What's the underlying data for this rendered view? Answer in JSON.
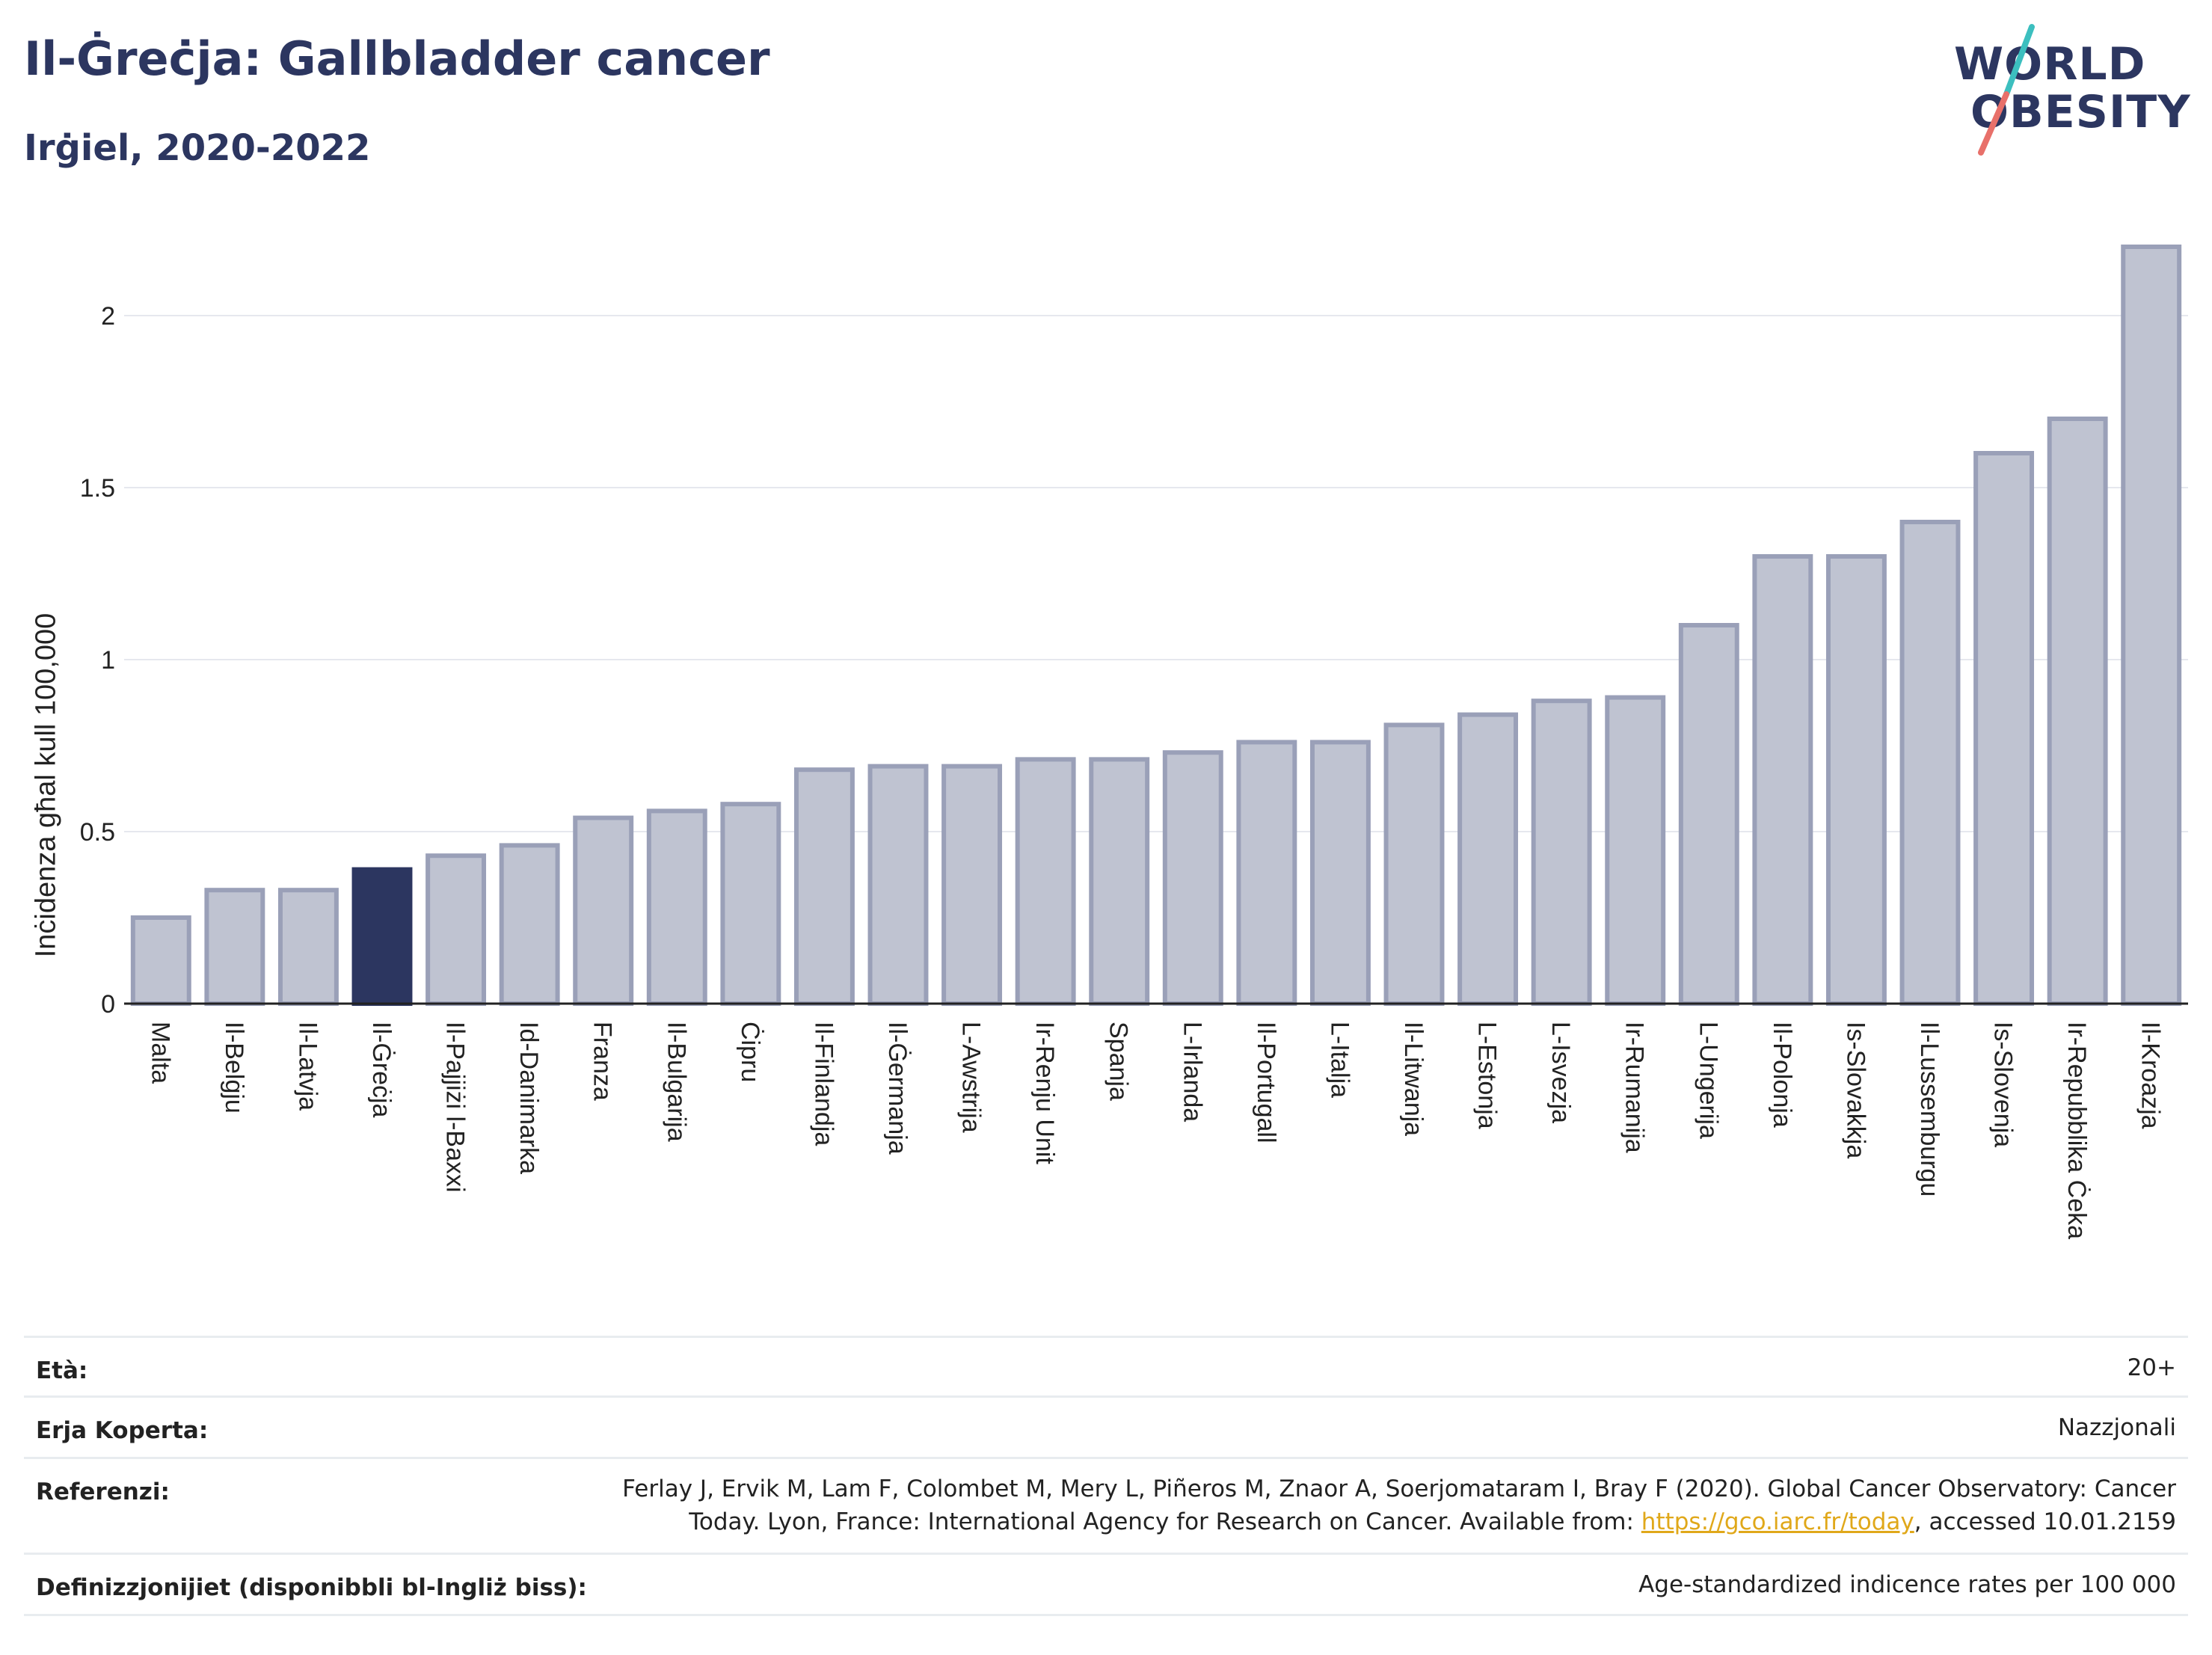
{
  "header": {
    "title": "Il-Ġreċja: Gallbladder cancer",
    "subtitle": "Irġiel, 2020-2022"
  },
  "logo": {
    "line1": "WORLD",
    "line2": "OBESITY",
    "colors": {
      "text": "#2c3660",
      "slash_teal": "#3cbfbf",
      "slash_coral": "#e8706a"
    }
  },
  "colors": {
    "bar_default_fill": "#bfc3d1",
    "bar_default_stroke": "#9aa0b8",
    "bar_highlight": "#2c3660",
    "grid": "#e6e8ee",
    "axis": "#222222"
  },
  "chart_data": {
    "type": "bar",
    "ylabel": "Inċidenza għal kull 100,000",
    "ylim": [
      0,
      2.25
    ],
    "yticks": [
      {
        "value": 0,
        "label": "0"
      },
      {
        "value": 0.5,
        "label": "0.5"
      },
      {
        "value": 1,
        "label": "1"
      },
      {
        "value": 1.5,
        "label": "1.5"
      },
      {
        "value": 2,
        "label": "2"
      }
    ],
    "grid": true,
    "highlight": "Il-Ġreċja",
    "categories": [
      "Malta",
      "Il-Belġju",
      "Il-Latvja",
      "Il-Ġreċja",
      "Il-Pajjiżi l-Baxxi",
      "Id-Danimarka",
      "Franza",
      "Il-Bulgarija",
      "Ċipru",
      "Il-Finlandja",
      "Il-Ġermanja",
      "L-Awstrija",
      "Ir-Renju Unit",
      "Spanja",
      "L-Irlanda",
      "Il-Portugall",
      "L-Italja",
      "Il-Litwanja",
      "L-Estonja",
      "L-Isvezja",
      "Ir-Rumanija",
      "L-Ungerija",
      "Il-Polonja",
      "Is-Slovakkja",
      "Il-Lussemburgu",
      "Is-Slovenja",
      "Ir-Repubblika Ċeka",
      "Il-Kroazja"
    ],
    "values": [
      0.25,
      0.33,
      0.33,
      0.39,
      0.43,
      0.46,
      0.54,
      0.56,
      0.58,
      0.68,
      0.69,
      0.69,
      0.71,
      0.71,
      0.73,
      0.76,
      0.76,
      0.81,
      0.84,
      0.88,
      0.89,
      1.1,
      1.3,
      1.3,
      1.4,
      1.6,
      1.7,
      2.2
    ]
  },
  "info": {
    "age_label": "Età:",
    "age_value": "20+",
    "area_label": "Erja Koperta:",
    "area_value": "Nazzjonali",
    "ref_label": "Referenzi:",
    "ref_line1": "Ferlay J, Ervik M, Lam F, Colombet M, Mery L, Piñeros M, Znaor A, Soerjomataram I, Bray F (2020). Global Cancer Observatory: Cancer",
    "ref_line2_pre": "Today. Lyon, France: International Agency for Research on Cancer. Available from: ",
    "ref_link": "https://gco.iarc.fr/today",
    "ref_line2_post": ", accessed 10.01.2159",
    "def_label": "Definizzjonijiet (disponibbli bl-Ingliż biss):",
    "def_value": "Age-standardized indicence rates per 100 000"
  }
}
